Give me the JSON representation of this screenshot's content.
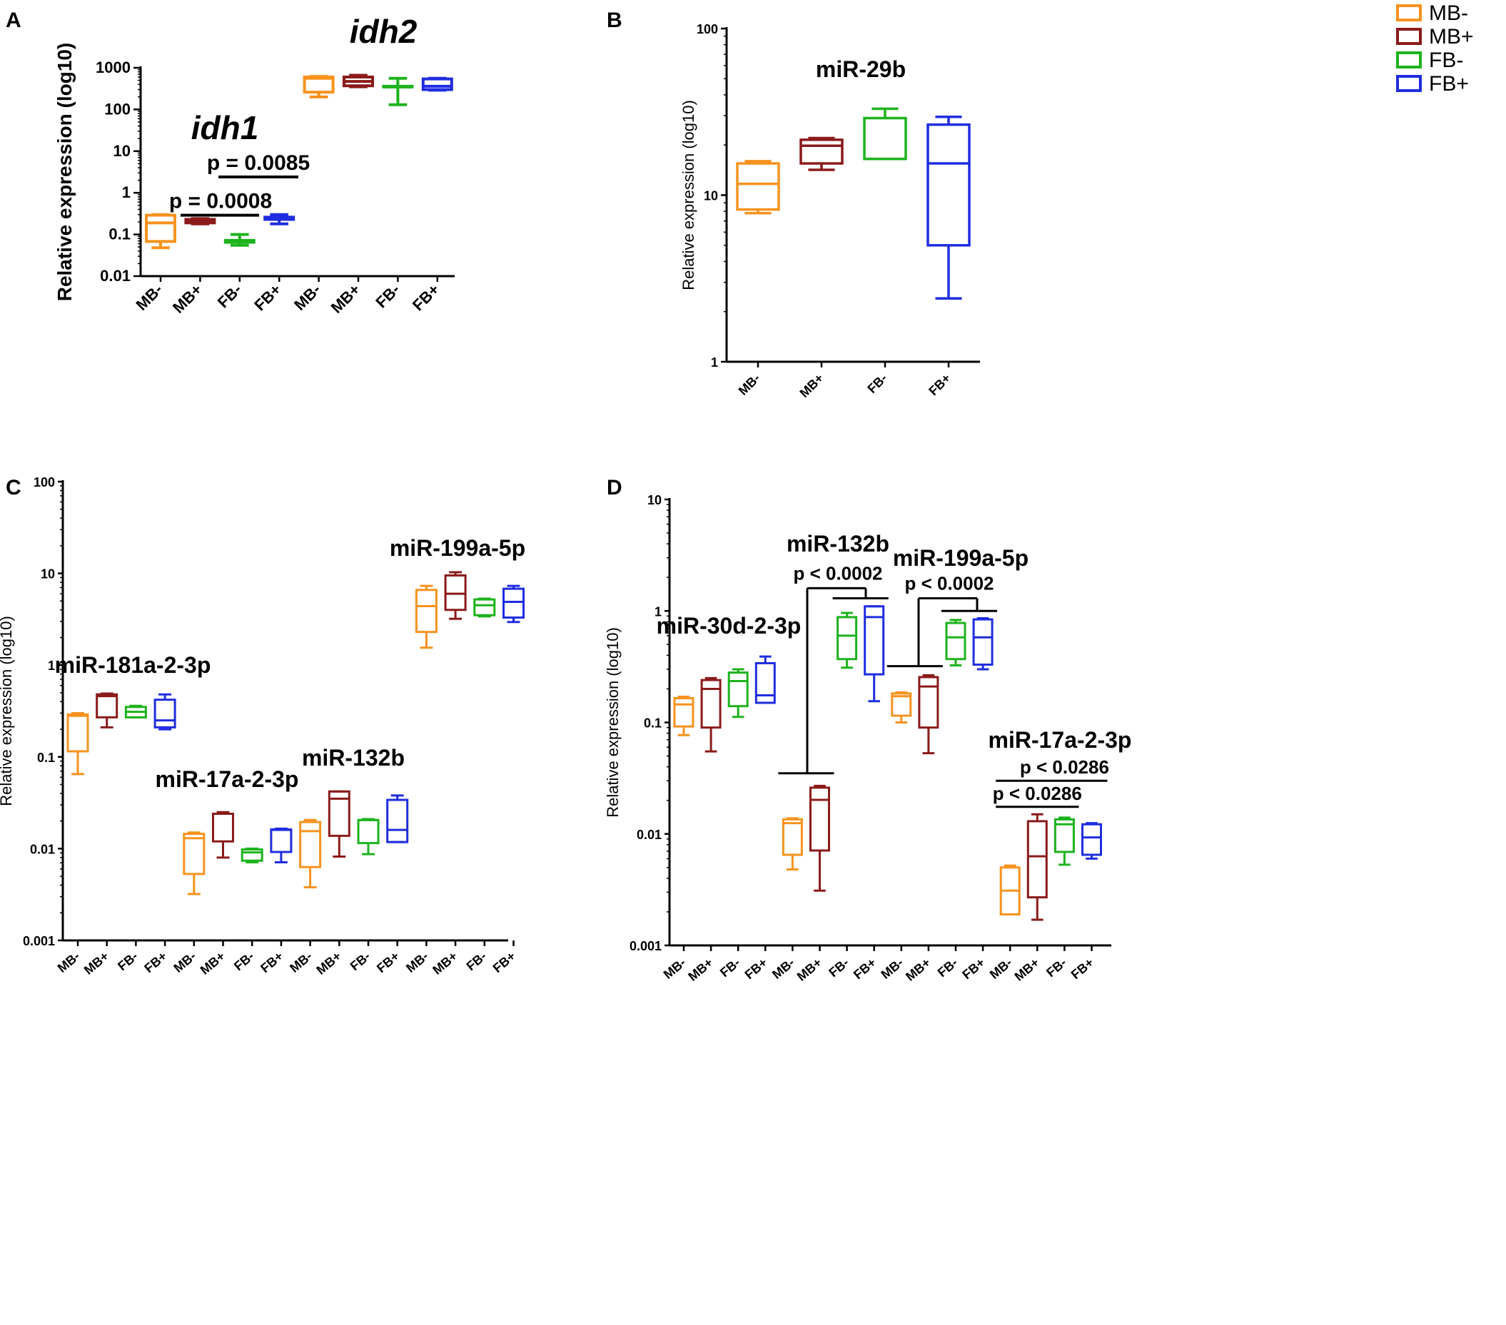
{
  "colors": {
    "MB-": "#f7931e",
    "MB+": "#8b1a1a",
    "FB-": "#1db31d",
    "FB+": "#1f2de0"
  },
  "legend": [
    "MB-",
    "MB+",
    "FB-",
    "FB+"
  ],
  "chart_data": [
    {
      "panel": "A",
      "type": "box",
      "yscale": "log10",
      "ylabel": "Relative expression (log10)",
      "ylim": [
        0.01,
        1000
      ],
      "yticks": [
        "0.01",
        "0.1",
        "1",
        "10",
        "100",
        "1000"
      ],
      "groups": [
        {
          "label": "idh1",
          "italic": true,
          "series": [
            {
              "name": "MB-",
              "min": 0.048,
              "q1": 0.068,
              "median": 0.19,
              "q3": 0.29,
              "max": 0.3
            },
            {
              "name": "MB+",
              "min": 0.18,
              "q1": 0.19,
              "median": 0.21,
              "q3": 0.23,
              "max": 0.24
            },
            {
              "name": "FB-",
              "min": 0.055,
              "q1": 0.065,
              "median": 0.068,
              "q3": 0.072,
              "max": 0.1
            },
            {
              "name": "FB+",
              "min": 0.18,
              "q1": 0.23,
              "median": 0.25,
              "q3": 0.26,
              "max": 0.3
            }
          ]
        },
        {
          "label": "idh2",
          "italic": true,
          "series": [
            {
              "name": "MB-",
              "min": 200,
              "q1": 260,
              "median": 560,
              "q3": 600,
              "max": 620
            },
            {
              "name": "MB+",
              "min": 350,
              "q1": 370,
              "median": 470,
              "q3": 600,
              "max": 660
            },
            {
              "name": "FB-",
              "min": 130,
              "q1": 350,
              "median": 350,
              "q3": 360,
              "max": 560
            },
            {
              "name": "FB+",
              "min": 290,
              "q1": 300,
              "median": 360,
              "q3": 540,
              "max": 560
            }
          ]
        }
      ],
      "annotations": [
        {
          "text": "p = 0.0008",
          "from": 1,
          "to": 3,
          "y": 0.29
        },
        {
          "text": "p = 0.0085",
          "from": 2,
          "to": 4,
          "y": 2.4
        }
      ]
    },
    {
      "panel": "B",
      "type": "box",
      "yscale": "log10",
      "ylabel": "Relative expression (log10)",
      "ylim": [
        1,
        100
      ],
      "yticks": [
        "1",
        "10",
        "100"
      ],
      "groups": [
        {
          "label": "miR-29b",
          "italic": false,
          "series": [
            {
              "name": "MB-",
              "min": 7.8,
              "q1": 8.2,
              "median": 11.7,
              "q3": 15.5,
              "max": 16.0
            },
            {
              "name": "MB+",
              "min": 14.2,
              "q1": 15.5,
              "median": 19.8,
              "q3": 21.5,
              "max": 22.0
            },
            {
              "name": "FB-",
              "min": 16.5,
              "q1": 16.5,
              "median": 16.5,
              "q3": 29.0,
              "max": 33.0
            },
            {
              "name": "FB+",
              "min": 2.4,
              "q1": 5.0,
              "median": 15.5,
              "q3": 26.5,
              "max": 29.5
            }
          ]
        }
      ],
      "annotations": []
    },
    {
      "panel": "C",
      "type": "box",
      "yscale": "log10",
      "ylabel": "Relative expression (log10)",
      "ylim": [
        0.001,
        100
      ],
      "yticks": [
        "0.001",
        "0.01",
        "0.1",
        "1",
        "10",
        "100"
      ],
      "groups": [
        {
          "label": "miR-181a-2-3p",
          "italic": false,
          "series": [
            {
              "name": "MB-",
              "min": 0.065,
              "q1": 0.115,
              "median": 0.28,
              "q3": 0.29,
              "max": 0.3
            },
            {
              "name": "MB+",
              "min": 0.21,
              "q1": 0.27,
              "median": 0.46,
              "q3": 0.48,
              "max": 0.49
            },
            {
              "name": "FB-",
              "min": 0.27,
              "q1": 0.27,
              "median": 0.31,
              "q3": 0.35,
              "max": 0.36
            },
            {
              "name": "FB+",
              "min": 0.2,
              "q1": 0.21,
              "median": 0.25,
              "q3": 0.42,
              "max": 0.48
            }
          ]
        },
        {
          "label": "miR-17a-2-3p",
          "italic": false,
          "series": [
            {
              "name": "MB-",
              "min": 0.0032,
              "q1": 0.0053,
              "median": 0.013,
              "q3": 0.0145,
              "max": 0.015
            },
            {
              "name": "MB+",
              "min": 0.008,
              "q1": 0.012,
              "median": 0.024,
              "q3": 0.024,
              "max": 0.025
            },
            {
              "name": "FB-",
              "min": 0.0071,
              "q1": 0.0074,
              "median": 0.0091,
              "q3": 0.0098,
              "max": 0.01
            },
            {
              "name": "FB+",
              "min": 0.0071,
              "q1": 0.0092,
              "median": 0.016,
              "q3": 0.0162,
              "max": 0.0165
            }
          ]
        },
        {
          "label": "miR-132b",
          "italic": false,
          "series": [
            {
              "name": "MB-",
              "min": 0.0038,
              "q1": 0.0063,
              "median": 0.0155,
              "q3": 0.0195,
              "max": 0.0205
            },
            {
              "name": "MB+",
              "min": 0.0082,
              "q1": 0.0138,
              "median": 0.035,
              "q3": 0.042,
              "max": 0.042
            },
            {
              "name": "FB-",
              "min": 0.0087,
              "q1": 0.0115,
              "median": 0.0205,
              "q3": 0.0205,
              "max": 0.021
            },
            {
              "name": "FB+",
              "min": 0.0118,
              "q1": 0.0118,
              "median": 0.016,
              "q3": 0.034,
              "max": 0.038
            }
          ]
        },
        {
          "label": "miR-199a-5p",
          "italic": false,
          "series": [
            {
              "name": "MB-",
              "min": 1.55,
              "q1": 2.3,
              "median": 4.4,
              "q3": 6.6,
              "max": 7.3
            },
            {
              "name": "MB+",
              "min": 3.2,
              "q1": 4.0,
              "median": 6.0,
              "q3": 9.5,
              "max": 10.3
            },
            {
              "name": "FB-",
              "min": 3.4,
              "q1": 3.5,
              "median": 4.5,
              "q3": 5.2,
              "max": 5.3
            },
            {
              "name": "FB+",
              "min": 2.95,
              "q1": 3.3,
              "median": 4.9,
              "q3": 6.8,
              "max": 7.3
            }
          ]
        }
      ],
      "annotations": []
    },
    {
      "panel": "D",
      "type": "box",
      "yscale": "log10",
      "ylabel": "Relative expression (log10)",
      "ylim": [
        0.001,
        10
      ],
      "yticks": [
        "0.001",
        "0.01",
        "0.1",
        "1",
        "10"
      ],
      "groups": [
        {
          "label": "miR-30d-2-3p",
          "italic": false,
          "series": [
            {
              "name": "MB-",
              "min": 0.077,
              "q1": 0.092,
              "median": 0.145,
              "q3": 0.165,
              "max": 0.17
            },
            {
              "name": "MB+",
              "min": 0.055,
              "q1": 0.09,
              "median": 0.2,
              "q3": 0.24,
              "max": 0.25
            },
            {
              "name": "FB-",
              "min": 0.112,
              "q1": 0.14,
              "median": 0.235,
              "q3": 0.28,
              "max": 0.3
            },
            {
              "name": "FB+",
              "min": 0.15,
              "q1": 0.15,
              "median": 0.175,
              "q3": 0.34,
              "max": 0.39
            }
          ]
        },
        {
          "label": "miR-132b",
          "italic": false,
          "series": [
            {
              "name": "MB-",
              "min": 0.0048,
              "q1": 0.0065,
              "median": 0.0125,
              "q3": 0.0135,
              "max": 0.0138
            },
            {
              "name": "MB+",
              "min": 0.0031,
              "q1": 0.0071,
              "median": 0.0202,
              "q3": 0.026,
              "max": 0.027
            },
            {
              "name": "FB-",
              "min": 0.31,
              "q1": 0.37,
              "median": 0.6,
              "q3": 0.88,
              "max": 0.96
            },
            {
              "name": "FB+",
              "min": 0.155,
              "q1": 0.27,
              "median": 0.88,
              "q3": 1.1,
              "max": 1.1
            }
          ]
        },
        {
          "label": "miR-199a-5p",
          "italic": false,
          "series": [
            {
              "name": "MB-",
              "min": 0.1,
              "q1": 0.115,
              "median": 0.172,
              "q3": 0.182,
              "max": 0.186
            },
            {
              "name": "MB+",
              "min": 0.053,
              "q1": 0.09,
              "median": 0.21,
              "q3": 0.255,
              "max": 0.265
            },
            {
              "name": "FB-",
              "min": 0.325,
              "q1": 0.37,
              "median": 0.58,
              "q3": 0.78,
              "max": 0.83
            },
            {
              "name": "FB+",
              "min": 0.3,
              "q1": 0.33,
              "median": 0.58,
              "q3": 0.84,
              "max": 0.86
            }
          ]
        },
        {
          "label": "miR-17a-2-3p",
          "italic": false,
          "series": [
            {
              "name": "MB-",
              "min": 0.0019,
              "q1": 0.0019,
              "median": 0.0031,
              "q3": 0.005,
              "max": 0.0052
            },
            {
              "name": "MB+",
              "min": 0.0017,
              "q1": 0.0027,
              "median": 0.0063,
              "q3": 0.013,
              "max": 0.015
            },
            {
              "name": "FB-",
              "min": 0.0053,
              "q1": 0.0069,
              "median": 0.0122,
              "q3": 0.0135,
              "max": 0.014
            },
            {
              "name": "FB+",
              "min": 0.006,
              "q1": 0.0065,
              "median": 0.0093,
              "q3": 0.0122,
              "max": 0.0125
            }
          ]
        }
      ],
      "annotations": [
        {
          "text": "p < 0.0002",
          "group": 1
        },
        {
          "text": "p < 0.0002",
          "group": 2
        },
        {
          "text": "p < 0.0286",
          "group": 3,
          "level": "low"
        },
        {
          "text": "p < 0.0286",
          "group": 3,
          "level": "high"
        }
      ]
    }
  ]
}
